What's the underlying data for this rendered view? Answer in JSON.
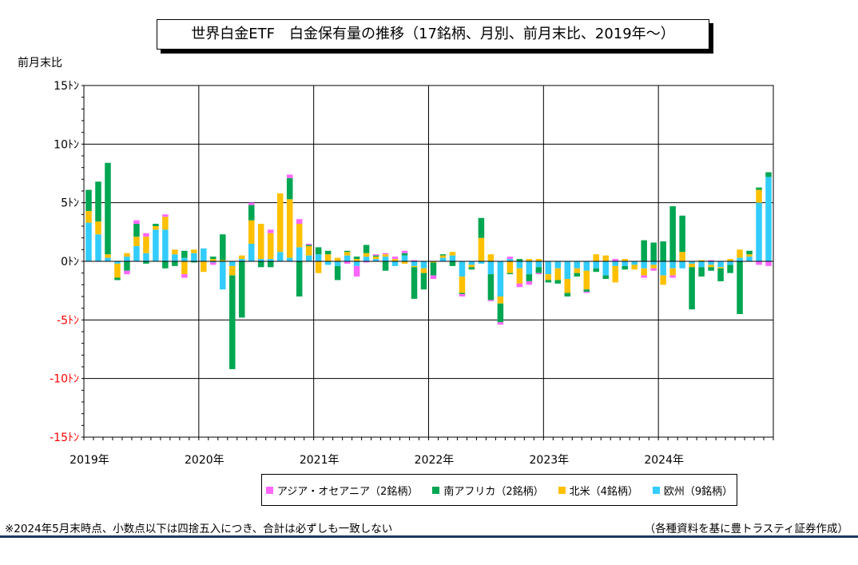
{
  "title": "世界白金ETF　白金保有量の推移（17銘柄、月別、前月末比、2019年～）",
  "footnote": "※2024年5月末時点、小数点以下は四捨五入につき、合計は必ずしも一致しない",
  "source": "（各種資料を基に豊トラスティ証券作成）",
  "colors": {
    "asia": "#ff66ff",
    "safrica": "#00a651",
    "namerica": "#ffc000",
    "europe": "#33ccff",
    "negative_tick": "#ff0000"
  },
  "chart_data": {
    "type": "bar",
    "stacked": true,
    "title": "世界白金ETF　白金保有量の推移（17銘柄、月別、前月末比、2019年～）",
    "ylabel": "前月末比",
    "ylim": [
      -15,
      15
    ],
    "yticks": [
      15,
      10,
      5,
      0,
      -5,
      -10,
      -15
    ],
    "ytick_labels": [
      "15ﾄﾝ",
      "10ﾄﾝ",
      "5ﾄﾝ",
      "0ﾄﾝ",
      "-5ﾄﾝ",
      "-10ﾄﾝ",
      "-15ﾄﾝ"
    ],
    "x_year_labels": [
      "2019年",
      "2020年",
      "2021年",
      "2022年",
      "2023年",
      "2024年"
    ],
    "x_months_per_year": 12,
    "x_total_months": 72,
    "grid": true,
    "legend_position": "bottom",
    "series": [
      {
        "key": "asia",
        "name": "アジア・オセアニア（2銘柄）",
        "values": [
          0,
          0,
          0,
          0,
          -0.3,
          0.3,
          0.3,
          0,
          0.2,
          0,
          -0.3,
          0,
          0,
          -0.2,
          0,
          0,
          0,
          0.2,
          0,
          0.3,
          0,
          0.3,
          0.4,
          0.1,
          0,
          0,
          0,
          -0.2,
          -0.9,
          -0.1,
          0.1,
          0.1,
          0.2,
          0.2,
          0.1,
          0,
          -0.3,
          0,
          0,
          -0.2,
          0,
          0,
          -0.1,
          -0.2,
          0.2,
          -0.3,
          -0.3,
          -0.1,
          0,
          0,
          0,
          0,
          -0.1,
          0,
          0,
          0.2,
          0,
          0,
          -0.2,
          -0.2,
          0,
          -0.2,
          0,
          0,
          0,
          0.1,
          0,
          0,
          0,
          0,
          -0.3,
          -0.4
        ]
      },
      {
        "key": "safrica",
        "name": "南アフリカ（2銘柄）",
        "values": [
          1.8,
          3.4,
          7.8,
          -0.2,
          -0.8,
          1.1,
          -0.2,
          0.2,
          -0.6,
          -0.4,
          0.6,
          -0.1,
          0,
          0.2,
          2.2,
          -8.0,
          -4.8,
          1.3,
          -0.5,
          -0.5,
          0,
          1.8,
          -3.0,
          0.1,
          0.6,
          0.3,
          -1.2,
          0.1,
          0.2,
          0.7,
          0.1,
          -0.8,
          0,
          0.2,
          -2.7,
          -1.4,
          -1.1,
          0.1,
          -0.4,
          -0.1,
          -0.2,
          1.7,
          -2.2,
          -1.6,
          -0.1,
          0.2,
          -0.6,
          -0.5,
          -0.2,
          -0.3,
          -0.3,
          -0.3,
          -0.2,
          -0.3,
          -0.3,
          0,
          -0.3,
          0,
          1.8,
          1.6,
          1.7,
          4.7,
          3.1,
          -3.6,
          -0.8,
          -0.3,
          -1.1,
          -0.7,
          -4.5,
          0.3,
          0.2,
          0.4
        ]
      },
      {
        "key": "namerica",
        "name": "北米（4銘柄）",
        "values": [
          1.0,
          1.1,
          0.3,
          -1.2,
          0.3,
          0.8,
          1.4,
          0.3,
          1.1,
          0.4,
          -1.1,
          0.3,
          -0.9,
          0.2,
          0.1,
          -0.8,
          0.3,
          2.0,
          3.0,
          2.2,
          5.0,
          5.0,
          2.0,
          0.8,
          -1.0,
          0.6,
          0.3,
          0.3,
          0.2,
          0.3,
          0.2,
          0.2,
          0.2,
          -0.2,
          -0.1,
          -0.4,
          -0.1,
          0.2,
          0.3,
          -1.4,
          -0.2,
          2.0,
          0.6,
          -0.6,
          -1.0,
          -1.3,
          0.2,
          0.2,
          -0.5,
          -1.0,
          -1.2,
          -0.4,
          -1.6,
          0.6,
          0.5,
          -1.4,
          0.2,
          -0.4,
          -0.6,
          -0.3,
          -0.8,
          -0.6,
          0.8,
          -0.3,
          0.1,
          -0.2,
          -0.1,
          0.2,
          0.7,
          0.2,
          1.1,
          0
        ]
      },
      {
        "key": "europe",
        "name": "欧州（9銘柄）",
        "values": [
          3.3,
          2.3,
          0.3,
          -0.2,
          0.4,
          1.3,
          0.7,
          2.7,
          2.7,
          0.6,
          0.3,
          0.7,
          1.1,
          -0.1,
          -2.4,
          -0.4,
          0.2,
          1.5,
          0.2,
          0.2,
          0.8,
          0.3,
          1.2,
          0.5,
          0.6,
          -0.3,
          -0.4,
          0.5,
          -0.4,
          0.4,
          0.2,
          0.4,
          -0.4,
          0.5,
          -0.4,
          -0.6,
          0,
          0.3,
          0.5,
          -1.3,
          -0.3,
          -0.2,
          -1.1,
          -3.0,
          0.2,
          -0.6,
          -1.1,
          -0.5,
          -1.1,
          -0.6,
          -1.5,
          -0.6,
          -0.8,
          -0.6,
          -1.2,
          -0.4,
          -0.4,
          -0.3,
          -0.6,
          -0.3,
          -1.2,
          -0.6,
          -0.6,
          -0.2,
          -0.5,
          -0.3,
          -0.5,
          -0.3,
          0.3,
          0.4,
          5.0,
          7.2
        ]
      }
    ]
  }
}
